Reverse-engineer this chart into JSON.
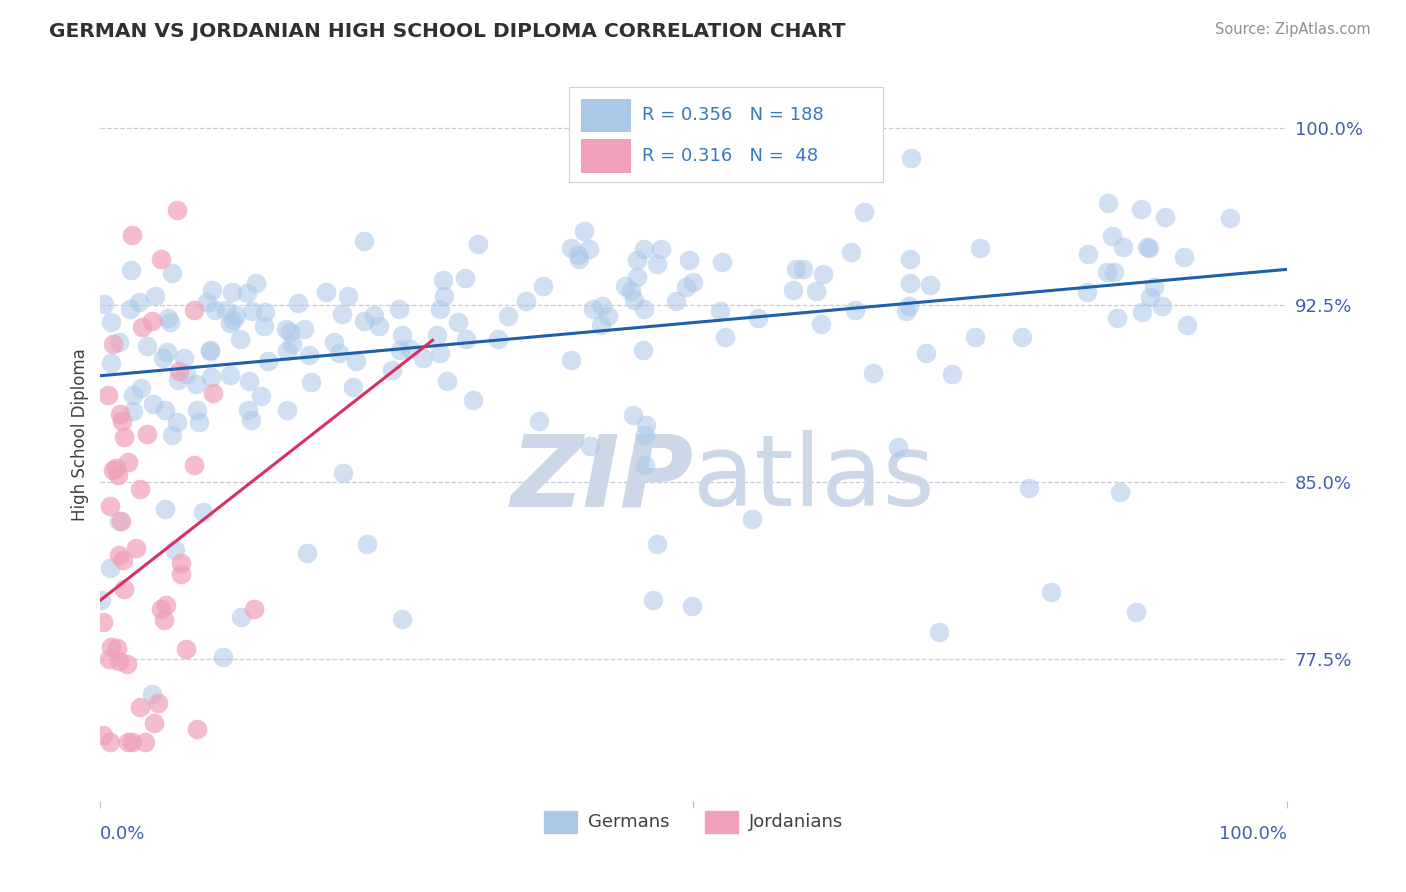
{
  "title": "GERMAN VS JORDANIAN HIGH SCHOOL DIPLOMA CORRELATION CHART",
  "source": "Source: ZipAtlas.com",
  "ylabel": "High School Diploma",
  "yticks": [
    0.775,
    0.85,
    0.925,
    1.0
  ],
  "ytick_labels": [
    "77.5%",
    "85.0%",
    "92.5%",
    "100.0%"
  ],
  "ymin": 0.715,
  "ymax": 1.025,
  "xmin": 0.0,
  "xmax": 1.0,
  "german_R": 0.356,
  "german_N": 188,
  "jordanian_R": 0.316,
  "jordanian_N": 48,
  "german_color": "#aac8e8",
  "jordanian_color": "#f0a0b8",
  "trend_german_color": "#2060a8",
  "trend_jordanian_color": "#d83060",
  "watermark_zip": "ZIP",
  "watermark_atlas": "atlas",
  "watermark_color": "#ccd8e8",
  "background_color": "#ffffff",
  "title_color": "#303030",
  "source_color": "#909090",
  "axis_label_color": "#4060b0",
  "ylabel_color": "#404040",
  "gridline_color": "#c8ccd8",
  "legend_box_color": "#e8eef4",
  "legend_border_color": "#c8d0d8",
  "legend_text_color": "#3878c0"
}
